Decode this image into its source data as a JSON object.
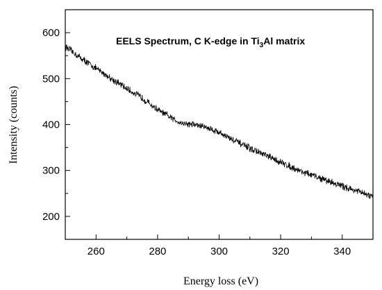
{
  "chart_data": {
    "type": "line",
    "title": {
      "text_before": "EELS Spectrum, C K-edge in Ti",
      "subscript": "3",
      "text_after": "Al matrix"
    },
    "xlabel": "Energy loss (eV)",
    "ylabel": "Intensity (counts)",
    "xlim": [
      250,
      350
    ],
    "ylim": [
      150,
      650
    ],
    "xticks": [
      260,
      280,
      300,
      320,
      340
    ],
    "yticks": [
      200,
      300,
      400,
      500,
      600
    ],
    "grid": false,
    "line_color": "#000000",
    "noise_amplitude": 6,
    "series": [
      {
        "x": [
          250,
          255,
          260,
          265,
          270,
          275,
          280,
          285,
          288,
          292,
          296,
          300,
          305,
          310,
          315,
          320,
          325,
          330,
          335,
          340,
          345,
          350
        ],
        "y": [
          570,
          545,
          522,
          500,
          478,
          458,
          432,
          412,
          403,
          400,
          394,
          383,
          365,
          348,
          333,
          318,
          303,
          290,
          278,
          266,
          255,
          242
        ]
      }
    ]
  }
}
